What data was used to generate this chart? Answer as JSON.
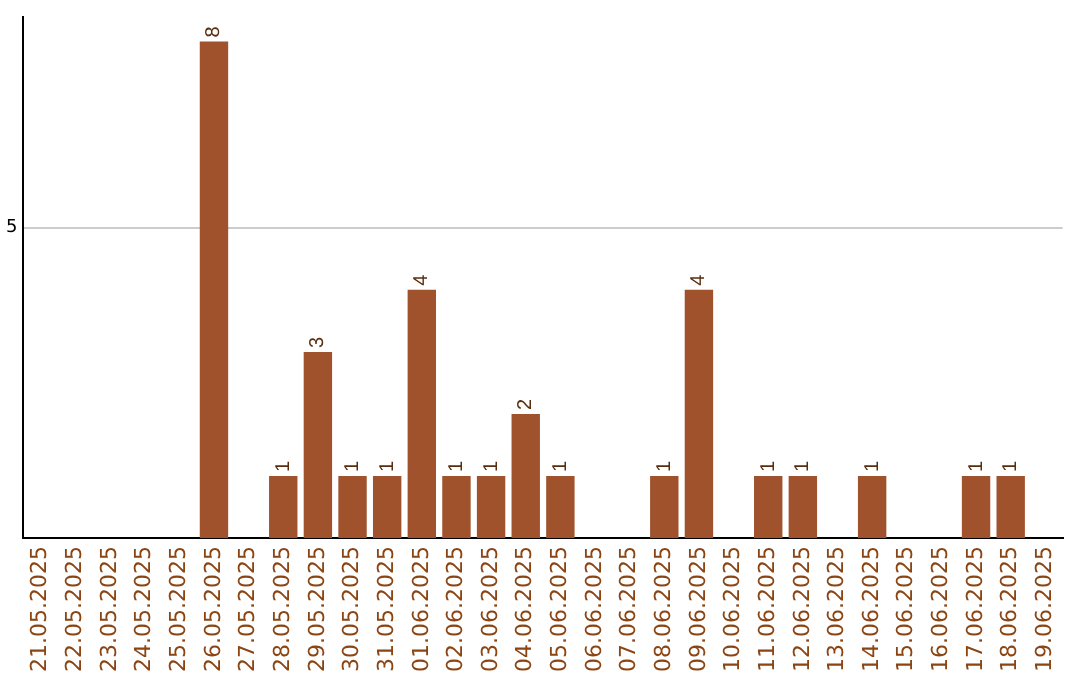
{
  "chart_data": {
    "type": "bar",
    "categories": [
      "21.05.2025",
      "22.05.2025",
      "23.05.2025",
      "24.05.2025",
      "25.05.2025",
      "26.05.2025",
      "27.05.2025",
      "28.05.2025",
      "29.05.2025",
      "30.05.2025",
      "31.05.2025",
      "01.06.2025",
      "02.06.2025",
      "03.06.2025",
      "04.06.2025",
      "05.06.2025",
      "06.06.2025",
      "07.06.2025",
      "08.06.2025",
      "09.06.2025",
      "10.06.2025",
      "11.06.2025",
      "12.06.2025",
      "13.06.2025",
      "14.06.2025",
      "15.06.2025",
      "16.06.2025",
      "17.06.2025",
      "18.06.2025",
      "19.06.2025"
    ],
    "values": [
      0,
      0,
      0,
      0,
      0,
      8,
      0,
      1,
      3,
      1,
      1,
      4,
      1,
      1,
      2,
      1,
      0,
      0,
      1,
      4,
      0,
      1,
      1,
      0,
      1,
      0,
      0,
      1,
      1,
      0
    ],
    "value_labels": [
      null,
      null,
      null,
      null,
      null,
      "8",
      null,
      "1",
      "3",
      "1",
      "1",
      "4",
      "1",
      "1",
      "2",
      "1",
      null,
      null,
      "1",
      "4",
      null,
      "1",
      "1",
      null,
      "1",
      null,
      null,
      "1",
      "1",
      null
    ],
    "color": "#a0522d",
    "ylim": [
      0,
      8.4
    ],
    "yticks": [
      5
    ],
    "grid": "y"
  }
}
